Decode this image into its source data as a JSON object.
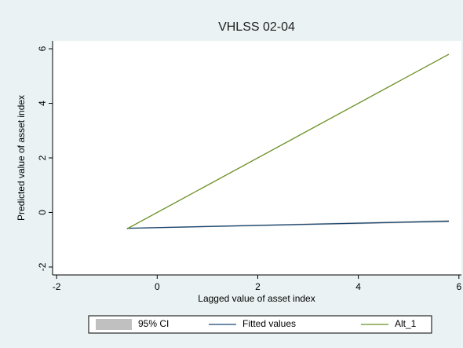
{
  "chart_data": {
    "type": "line",
    "title": "VHLSS 02-04",
    "x_label": "Lagged value of asset index",
    "y_label": "Predicted value of asset index",
    "x": [
      -0.6,
      5.8
    ],
    "series": [
      {
        "name": "95% CI",
        "color": "#c0c0c0",
        "lower": [
          -0.6,
          -0.36
        ],
        "upper": [
          -0.56,
          -0.28
        ]
      },
      {
        "name": "Fitted values",
        "color": "#1a476f",
        "values": [
          -0.58,
          -0.32
        ]
      },
      {
        "name": "Alt_1",
        "color": "#6b8e23",
        "values": [
          -0.6,
          5.8
        ]
      }
    ],
    "xlim": [
      -2.08,
      6.05
    ],
    "ylim": [
      -2.29,
      6.29
    ],
    "xticks": [
      -2,
      0,
      2,
      4,
      6
    ],
    "yticks": [
      -2,
      0,
      2,
      4,
      6
    ]
  }
}
